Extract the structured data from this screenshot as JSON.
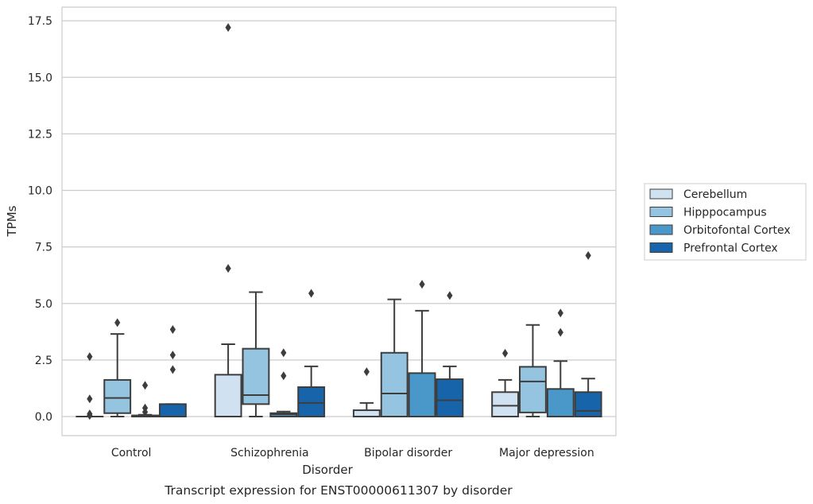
{
  "chart_data": {
    "type": "box",
    "xlabel": "Disorder",
    "ylabel": "TPMs",
    "caption": "Transcript expression for ENST00000611307 by disorder",
    "ylim": [
      -0.8,
      18.1
    ],
    "yticks": [
      "0.0",
      "2.5",
      "5.0",
      "7.5",
      "10.0",
      "12.5",
      "15.0",
      "17.5"
    ],
    "grid": "horizontal",
    "legend_position": "right",
    "categories": [
      "Control",
      "Schizophrenia",
      "Bipolar disorder",
      "Major depression"
    ],
    "series": [
      {
        "name": "Cerebellum",
        "color": "#d0e1f2",
        "boxes": [
          {
            "whislo": 0.0,
            "q1": 0.0,
            "med": 0.0,
            "q3": 0.0,
            "whishi": 0.0,
            "fliers": [
              2.65,
              0.78,
              0.12,
              0.05
            ]
          },
          {
            "whislo": 0.0,
            "q1": 0.0,
            "med": 0.0,
            "q3": 1.85,
            "whishi": 3.2,
            "fliers": [
              17.2,
              6.55
            ]
          },
          {
            "whislo": 0.0,
            "q1": 0.0,
            "med": 0.0,
            "q3": 0.28,
            "whishi": 0.6,
            "fliers": [
              1.98
            ]
          },
          {
            "whislo": 0.0,
            "q1": 0.0,
            "med": 0.48,
            "q3": 1.08,
            "whishi": 1.62,
            "fliers": [
              2.8
            ]
          }
        ]
      },
      {
        "name": "Hipppocampus",
        "color": "#94c4df",
        "boxes": [
          {
            "whislo": 0.0,
            "q1": 0.15,
            "med": 0.82,
            "q3": 1.62,
            "whishi": 3.65,
            "fliers": [
              4.15
            ]
          },
          {
            "whislo": 0.0,
            "q1": 0.55,
            "med": 0.95,
            "q3": 3.0,
            "whishi": 5.5,
            "fliers": []
          },
          {
            "whislo": 0.0,
            "q1": 0.0,
            "med": 1.02,
            "q3": 2.82,
            "whishi": 5.18,
            "fliers": []
          },
          {
            "whislo": 0.0,
            "q1": 0.18,
            "med": 1.55,
            "q3": 2.2,
            "whishi": 4.05,
            "fliers": []
          }
        ]
      },
      {
        "name": "Orbitofontal Cortex",
        "color": "#4a98c9",
        "boxes": [
          {
            "whislo": 0.0,
            "q1": 0.0,
            "med": 0.0,
            "q3": 0.05,
            "whishi": 0.08,
            "fliers": [
              1.38,
              0.38,
              0.2
            ]
          },
          {
            "whislo": 0.0,
            "q1": 0.0,
            "med": 0.1,
            "q3": 0.15,
            "whishi": 0.22,
            "fliers": [
              2.82,
              1.8
            ]
          },
          {
            "whislo": 0.0,
            "q1": 0.0,
            "med": 0.0,
            "q3": 1.92,
            "whishi": 4.68,
            "fliers": [
              5.85
            ]
          },
          {
            "whislo": 0.0,
            "q1": 0.0,
            "med": 0.0,
            "q3": 1.22,
            "whishi": 2.45,
            "fliers": [
              4.58,
              3.72
            ]
          }
        ]
      },
      {
        "name": "Prefrontal Cortex",
        "color": "#1764ab",
        "boxes": [
          {
            "whislo": 0.0,
            "q1": 0.0,
            "med": 0.0,
            "q3": 0.55,
            "whishi": 0.55,
            "fliers": [
              3.85,
              2.72,
              2.08
            ]
          },
          {
            "whislo": 0.0,
            "q1": 0.0,
            "med": 0.6,
            "q3": 1.3,
            "whishi": 2.22,
            "fliers": [
              5.45
            ]
          },
          {
            "whislo": 0.0,
            "q1": 0.0,
            "med": 0.72,
            "q3": 1.65,
            "whishi": 2.22,
            "fliers": [
              5.35
            ]
          },
          {
            "whislo": 0.0,
            "q1": 0.0,
            "med": 0.25,
            "q3": 1.08,
            "whishi": 1.68,
            "fliers": [
              7.12
            ]
          }
        ]
      }
    ]
  }
}
